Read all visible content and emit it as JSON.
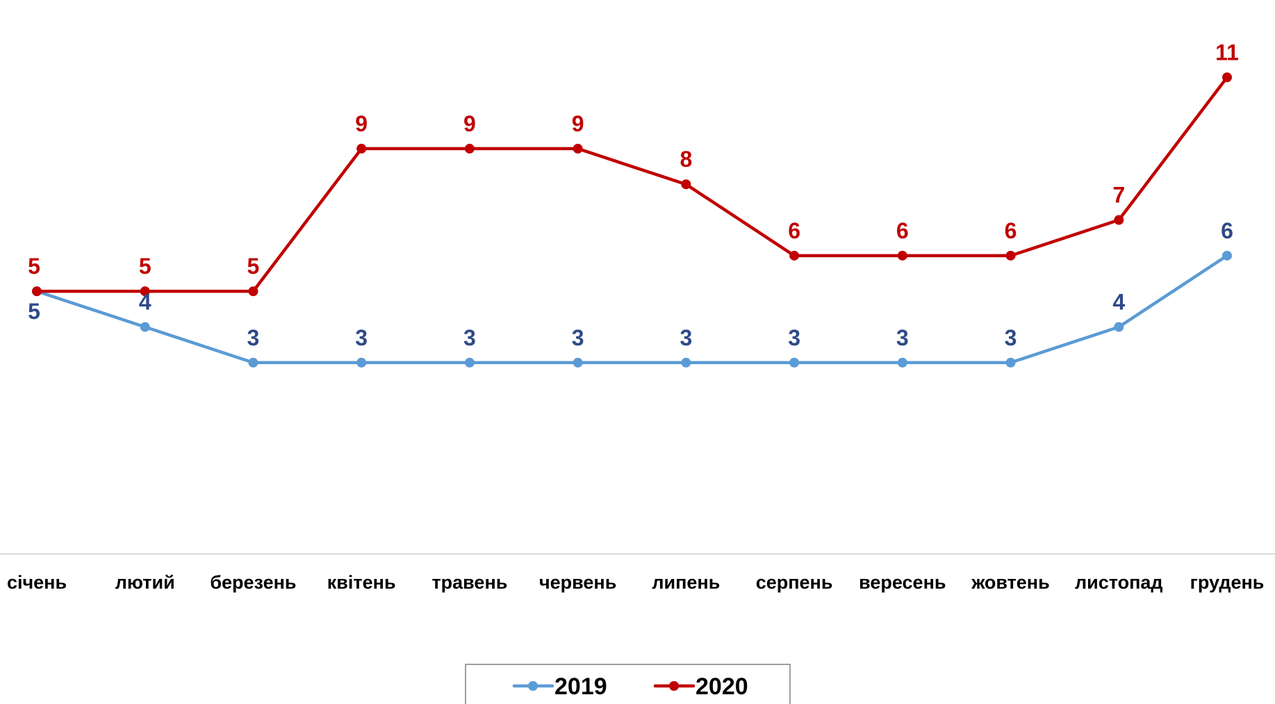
{
  "chart_data": {
    "type": "line",
    "title": "",
    "xlabel": "",
    "ylabel": "",
    "categories": [
      "січень",
      "лютий",
      "березень",
      "квітень",
      "травень",
      "червень",
      "липень",
      "серпень",
      "вересень",
      "жовтень",
      "листопад",
      "грудень"
    ],
    "series": [
      {
        "name": "2019",
        "color": "#5B9BD5",
        "label_color": "#2E4A87",
        "values": [
          5,
          4,
          3,
          3,
          3,
          3,
          3,
          3,
          3,
          3,
          4,
          6
        ]
      },
      {
        "name": "2020",
        "color": "#C00000",
        "label_color": "#C00000",
        "values": [
          5,
          5,
          5,
          9,
          9,
          9,
          8,
          6,
          6,
          6,
          7,
          11
        ]
      }
    ],
    "ylim": [
      -1,
      12
    ],
    "grid": false,
    "legend_position": "bottom-center",
    "data_labels": true
  }
}
